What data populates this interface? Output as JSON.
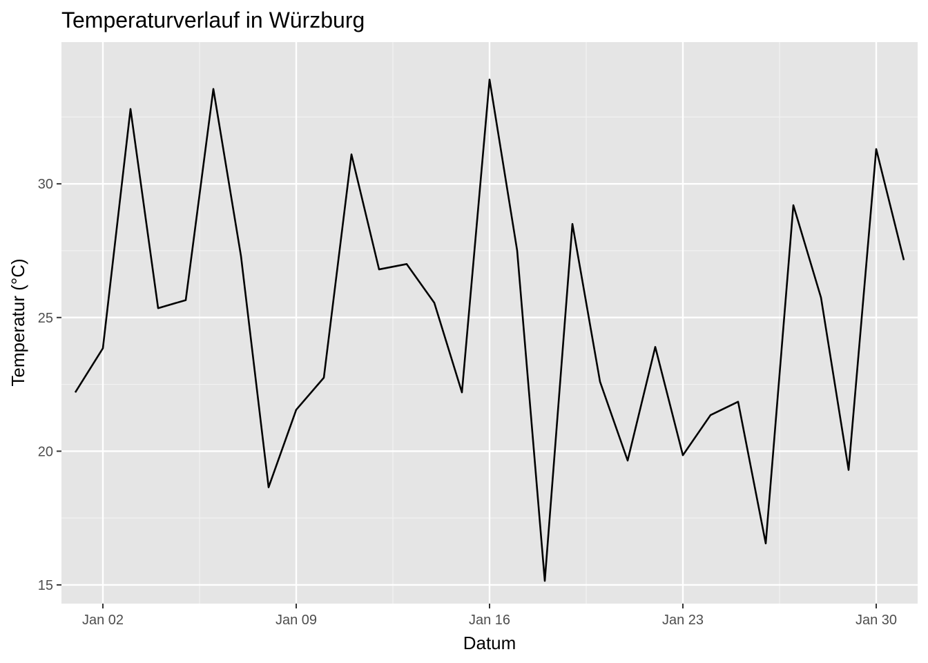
{
  "chart_data": {
    "type": "line",
    "title": "Temperaturverlauf in Würzburg",
    "xlabel": "Datum",
    "ylabel": "Temperatur (°C)",
    "x_tick_labels": [
      "Jan 02",
      "Jan 09",
      "Jan 16",
      "Jan 23",
      "Jan 30"
    ],
    "x_tick_dates": [
      "2024-01-02",
      "2024-01-09",
      "2024-01-16",
      "2024-01-23",
      "2024-01-30"
    ],
    "y_tick_labels": [
      "15",
      "20",
      "25",
      "30"
    ],
    "y_ticks": [
      15,
      20,
      25,
      30
    ],
    "x_range": [
      "2023-12-31",
      "2024-02-01"
    ],
    "ylim": [
      14.3,
      35.3
    ],
    "grid": true,
    "legend": "none",
    "colors": {
      "panel_background": "#E5E5E5",
      "grid_major": "#FFFFFF",
      "grid_minor": "#F2F2F2",
      "line": "#000000",
      "tick_text": "#4D4D4D"
    },
    "series": [
      {
        "x": [
          "2024-01-01",
          "2024-01-02",
          "2024-01-03",
          "2024-01-04",
          "2024-01-05",
          "2024-01-06",
          "2024-01-07",
          "2024-01-08",
          "2024-01-09",
          "2024-01-10",
          "2024-01-11",
          "2024-01-12",
          "2024-01-13",
          "2024-01-14",
          "2024-01-15",
          "2024-01-16",
          "2024-01-17",
          "2024-01-18",
          "2024-01-19",
          "2024-01-20",
          "2024-01-21",
          "2024-01-22",
          "2024-01-23",
          "2024-01-24",
          "2024-01-25",
          "2024-01-26",
          "2024-01-27",
          "2024-01-28",
          "2024-01-29",
          "2024-01-30",
          "2024-01-31"
        ],
        "values": [
          22.2,
          23.85,
          32.8,
          25.35,
          25.65,
          33.55,
          27.3,
          18.65,
          21.55,
          22.75,
          31.1,
          26.8,
          27.0,
          25.55,
          22.2,
          33.9,
          27.5,
          15.15,
          28.5,
          22.6,
          19.65,
          23.9,
          19.85,
          21.35,
          21.85,
          16.55,
          29.2,
          25.75,
          19.3,
          31.3,
          27.15
        ]
      }
    ]
  }
}
